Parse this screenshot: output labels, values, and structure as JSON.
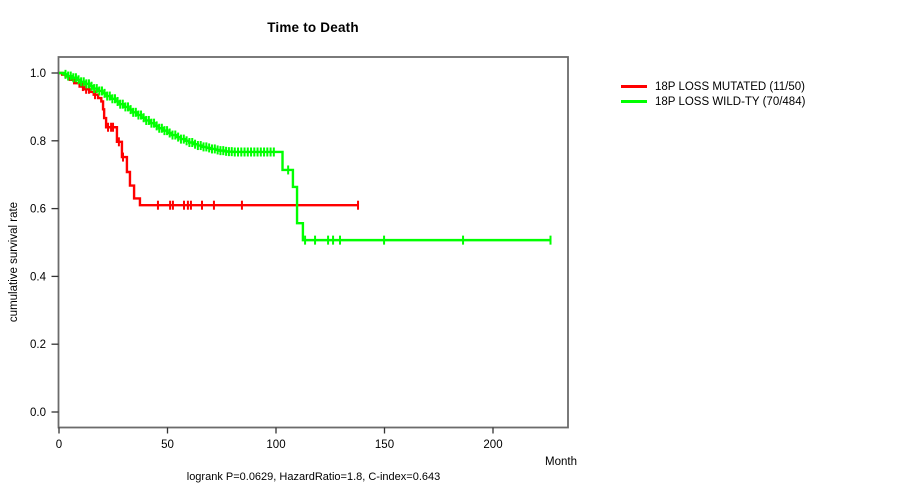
{
  "title": "Time to Death",
  "legend": [
    {
      "label": "18P LOSS MUTATED (11/50)",
      "color": "#ff0000"
    },
    {
      "label": "18P LOSS WILD-TY (70/484)",
      "color": "#00ff00"
    }
  ],
  "colors": {
    "red": "#ff0000",
    "green": "#00ff00",
    "axis_box": "#6b6b6b",
    "tick": "#333333",
    "text": "#000000"
  },
  "chart_data": {
    "type": "line",
    "subtype": "kaplan-meier-step",
    "title": "Time to Death",
    "xlabel": "Month",
    "ylabel": "cumulative survival rate",
    "annotation": "logrank P=0.0629, HazardRatio=1.8, C-index=0.643",
    "xlim": [
      0,
      234
    ],
    "ylim": [
      0.0,
      1.0
    ],
    "grid": false,
    "legend_position": "right-outside",
    "xticks": [
      0,
      50,
      100,
      150,
      200
    ],
    "xtick_labels": [
      "0",
      "50",
      "100",
      "150",
      "200"
    ],
    "yticks": [
      0.0,
      0.2,
      0.4,
      0.6,
      0.8,
      1.0
    ],
    "ytick_labels": [
      "0.0",
      "0.2",
      "0.4",
      "0.6",
      "0.8",
      "1.0"
    ],
    "series": [
      {
        "name": "18P LOSS MUTATED (11/50)",
        "color": "#ff0000",
        "steps": [
          [
            0,
            1.0
          ],
          [
            1.5,
            0.995
          ],
          [
            3,
            0.99
          ],
          [
            5,
            0.98
          ],
          [
            7,
            0.97
          ],
          [
            9.5,
            0.96
          ],
          [
            11.5,
            0.952
          ],
          [
            14,
            0.944
          ],
          [
            16,
            0.936
          ],
          [
            18,
            0.926
          ],
          [
            19.5,
            0.916
          ],
          [
            20.3,
            0.893
          ],
          [
            20.8,
            0.867
          ],
          [
            21.7,
            0.84
          ],
          [
            26.7,
            0.797
          ],
          [
            29,
            0.752
          ],
          [
            31.3,
            0.708
          ],
          [
            32.7,
            0.668
          ],
          [
            34.6,
            0.63
          ],
          [
            37.3,
            0.61
          ],
          [
            137.8,
            0.61
          ]
        ],
        "censor_times": [
          11,
          12.5,
          13.8,
          16.6,
          22.6,
          24,
          24.9,
          27.6,
          29.5,
          45.6,
          51.2,
          52.5,
          57.6,
          59.4,
          60.8,
          65.9,
          71.4,
          84.3,
          137.8
        ]
      },
      {
        "name": "18P LOSS WILD-TY (70/484)",
        "color": "#00ff00",
        "steps": [
          [
            0,
            1.0
          ],
          [
            2,
            0.996
          ],
          [
            4,
            0.991
          ],
          [
            6,
            0.986
          ],
          [
            8,
            0.98
          ],
          [
            10,
            0.974
          ],
          [
            12,
            0.968
          ],
          [
            14,
            0.961
          ],
          [
            16,
            0.954
          ],
          [
            18,
            0.947
          ],
          [
            20,
            0.94
          ],
          [
            22,
            0.932
          ],
          [
            24,
            0.924
          ],
          [
            26,
            0.916
          ],
          [
            28,
            0.908
          ],
          [
            30,
            0.9
          ],
          [
            32,
            0.892
          ],
          [
            34,
            0.884
          ],
          [
            36,
            0.876
          ],
          [
            38,
            0.868
          ],
          [
            40,
            0.86
          ],
          [
            42,
            0.852
          ],
          [
            44,
            0.844
          ],
          [
            46,
            0.837
          ],
          [
            48,
            0.83
          ],
          [
            50,
            0.823
          ],
          [
            52,
            0.817
          ],
          [
            54,
            0.811
          ],
          [
            56,
            0.805
          ],
          [
            58,
            0.8
          ],
          [
            60,
            0.795
          ],
          [
            62,
            0.79
          ],
          [
            64,
            0.786
          ],
          [
            66,
            0.782
          ],
          [
            68,
            0.779
          ],
          [
            70,
            0.776
          ],
          [
            72,
            0.773
          ],
          [
            74,
            0.771
          ],
          [
            76,
            0.769
          ],
          [
            78,
            0.768
          ],
          [
            80,
            0.767
          ],
          [
            103,
            0.714
          ],
          [
            107.8,
            0.664
          ],
          [
            109.7,
            0.557
          ],
          [
            112.4,
            0.507
          ],
          [
            226.5,
            0.507
          ]
        ],
        "censor_times": [
          3,
          4.2,
          5.4,
          6.6,
          7.8,
          9,
          10.2,
          11.4,
          12.6,
          13.8,
          15,
          16.2,
          17.4,
          18.6,
          19.8,
          21,
          22.2,
          23.4,
          24.6,
          25.8,
          27,
          28.2,
          29.4,
          30.6,
          31.8,
          33,
          34.2,
          35.4,
          36.6,
          37.8,
          39,
          40.2,
          41.4,
          42.6,
          43.8,
          45,
          46.2,
          47.4,
          48.6,
          49.8,
          51,
          52.3,
          53.6,
          54.9,
          56.2,
          57.5,
          58.8,
          60.1,
          61.4,
          62.7,
          64,
          65.3,
          66.6,
          67.9,
          69.2,
          70.5,
          71.8,
          73.1,
          74.4,
          75.7,
          77,
          78.3,
          79.6,
          81,
          82.5,
          84,
          85.5,
          87,
          88.5,
          90,
          91.5,
          93,
          94.5,
          96,
          97.5,
          99,
          105.6,
          113.4,
          118,
          124,
          126.3,
          129.5,
          149.8,
          186.2,
          226.5
        ]
      }
    ]
  }
}
